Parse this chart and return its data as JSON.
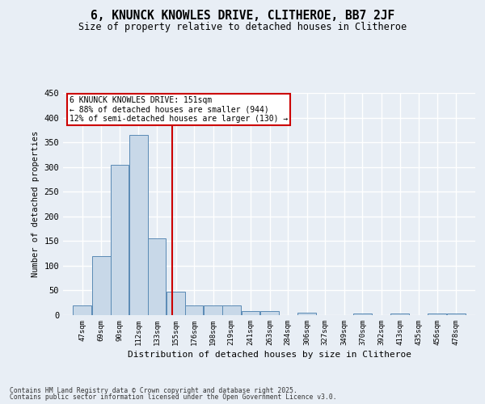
{
  "title": "6, KNUNCK KNOWLES DRIVE, CLITHEROE, BB7 2JF",
  "subtitle": "Size of property relative to detached houses in Clitheroe",
  "xlabel": "Distribution of detached houses by size in Clitheroe",
  "ylabel": "Number of detached properties",
  "bar_labels": [
    "47sqm",
    "69sqm",
    "90sqm",
    "112sqm",
    "133sqm",
    "155sqm",
    "176sqm",
    "198sqm",
    "219sqm",
    "241sqm",
    "263sqm",
    "284sqm",
    "306sqm",
    "327sqm",
    "349sqm",
    "370sqm",
    "392sqm",
    "413sqm",
    "435sqm",
    "456sqm",
    "478sqm"
  ],
  "bar_heights": [
    20,
    120,
    305,
    365,
    155,
    48,
    20,
    20,
    20,
    8,
    8,
    0,
    5,
    0,
    0,
    3,
    0,
    3,
    0,
    3,
    3
  ],
  "bar_color": "#c8d8e8",
  "bar_edge_color": "#5a8ab5",
  "vline_x": 151,
  "vline_color": "#cc0000",
  "annotation_line1": "6 KNUNCK KNOWLES DRIVE: 151sqm",
  "annotation_line2": "← 88% of detached houses are smaller (944)",
  "annotation_line3": "12% of semi-detached houses are larger (130) →",
  "annotation_box_color": "#ffffff",
  "annotation_box_edge": "#cc0000",
  "ylim": [
    0,
    450
  ],
  "bg_color": "#e8eef5",
  "grid_color": "#ffffff",
  "footer1": "Contains HM Land Registry data © Crown copyright and database right 2025.",
  "footer2": "Contains public sector information licensed under the Open Government Licence v3.0.",
  "bin_width": 22
}
